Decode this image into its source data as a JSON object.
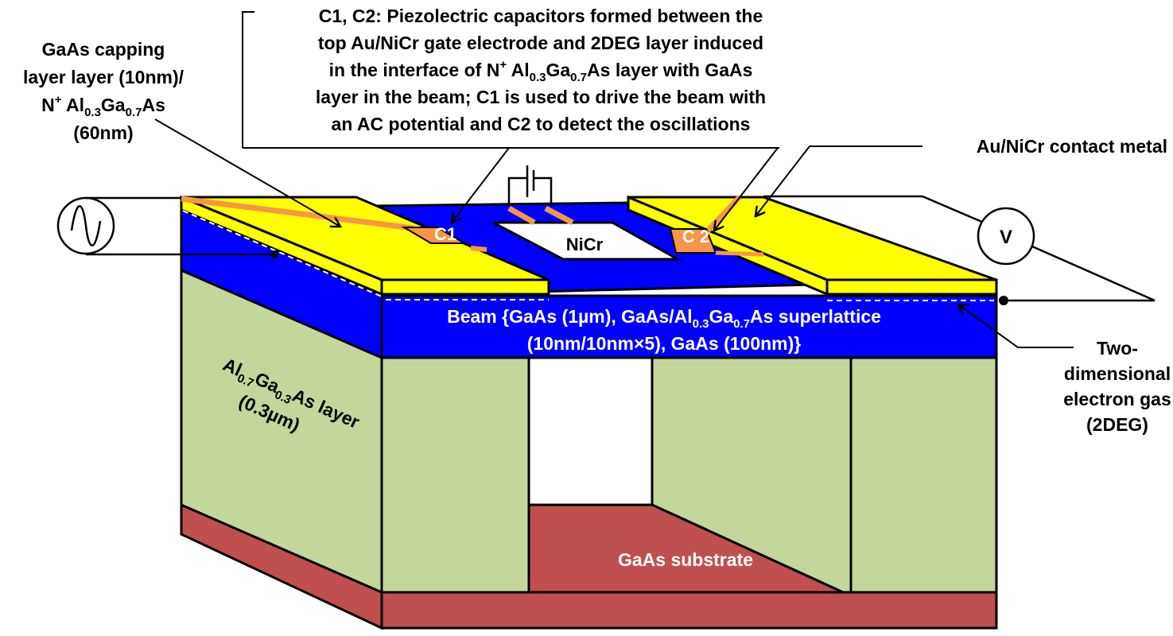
{
  "labels": {
    "capping_1": "GaAs capping",
    "capping_2": "layer layer (10nm)/",
    "capping_3_pre": "N",
    "capping_3_sup": "+",
    "capping_3_al": " Al",
    "capping_3_s1": "0.3",
    "capping_3_ga": "Ga",
    "capping_3_s2": "0.7",
    "capping_3_as": "As",
    "capping_4": "(60nm)",
    "cap_1": "C1, C2: Piezolectric capacitors formed between the",
    "cap_2": "top Au/NiCr gate electrode and 2DEG layer induced",
    "cap_3_a": "in the interface of N",
    "cap_3_sup": "+",
    "cap_3_b": " Al",
    "cap_3_s1": "0.3",
    "cap_3_c": "Ga",
    "cap_3_s2": "0.7",
    "cap_3_d": "As layer with GaAs",
    "cap_4": "layer in the beam; C1 is used to drive the beam with",
    "cap_5": "an AC potential and C2 to detect the oscillations",
    "contact": "Au/NiCr contact metal",
    "c1": "C1",
    "c2": "C 2",
    "nicr": "NiCr",
    "voltmeter": "V",
    "beam_1_a": "Beam {GaAs (1µm),  GaAs/Al",
    "beam_1_s1": "0.3",
    "beam_1_b": "Ga",
    "beam_1_s2": "0.7",
    "beam_1_c": "As superlattice",
    "beam_2": "(10nm/10nm×5),  GaAs (100nm)}",
    "tdeg_1": "Two-",
    "tdeg_2": "dimensional",
    "tdeg_3": "electron gas",
    "tdeg_4": "(2DEG)",
    "algaas_a": "Al",
    "algaas_s1": "0.7",
    "algaas_b": "Ga",
    "algaas_s2": "0.3",
    "algaas_c": "As layer",
    "algaas_2": "(0.3µm)",
    "substrate": "GaAs substrate"
  },
  "colors": {
    "beam": "#0000ff",
    "gold": "#ffff00",
    "contact": "#f79646",
    "algaas": "#c4d79b",
    "substrate": "#c0504d"
  }
}
